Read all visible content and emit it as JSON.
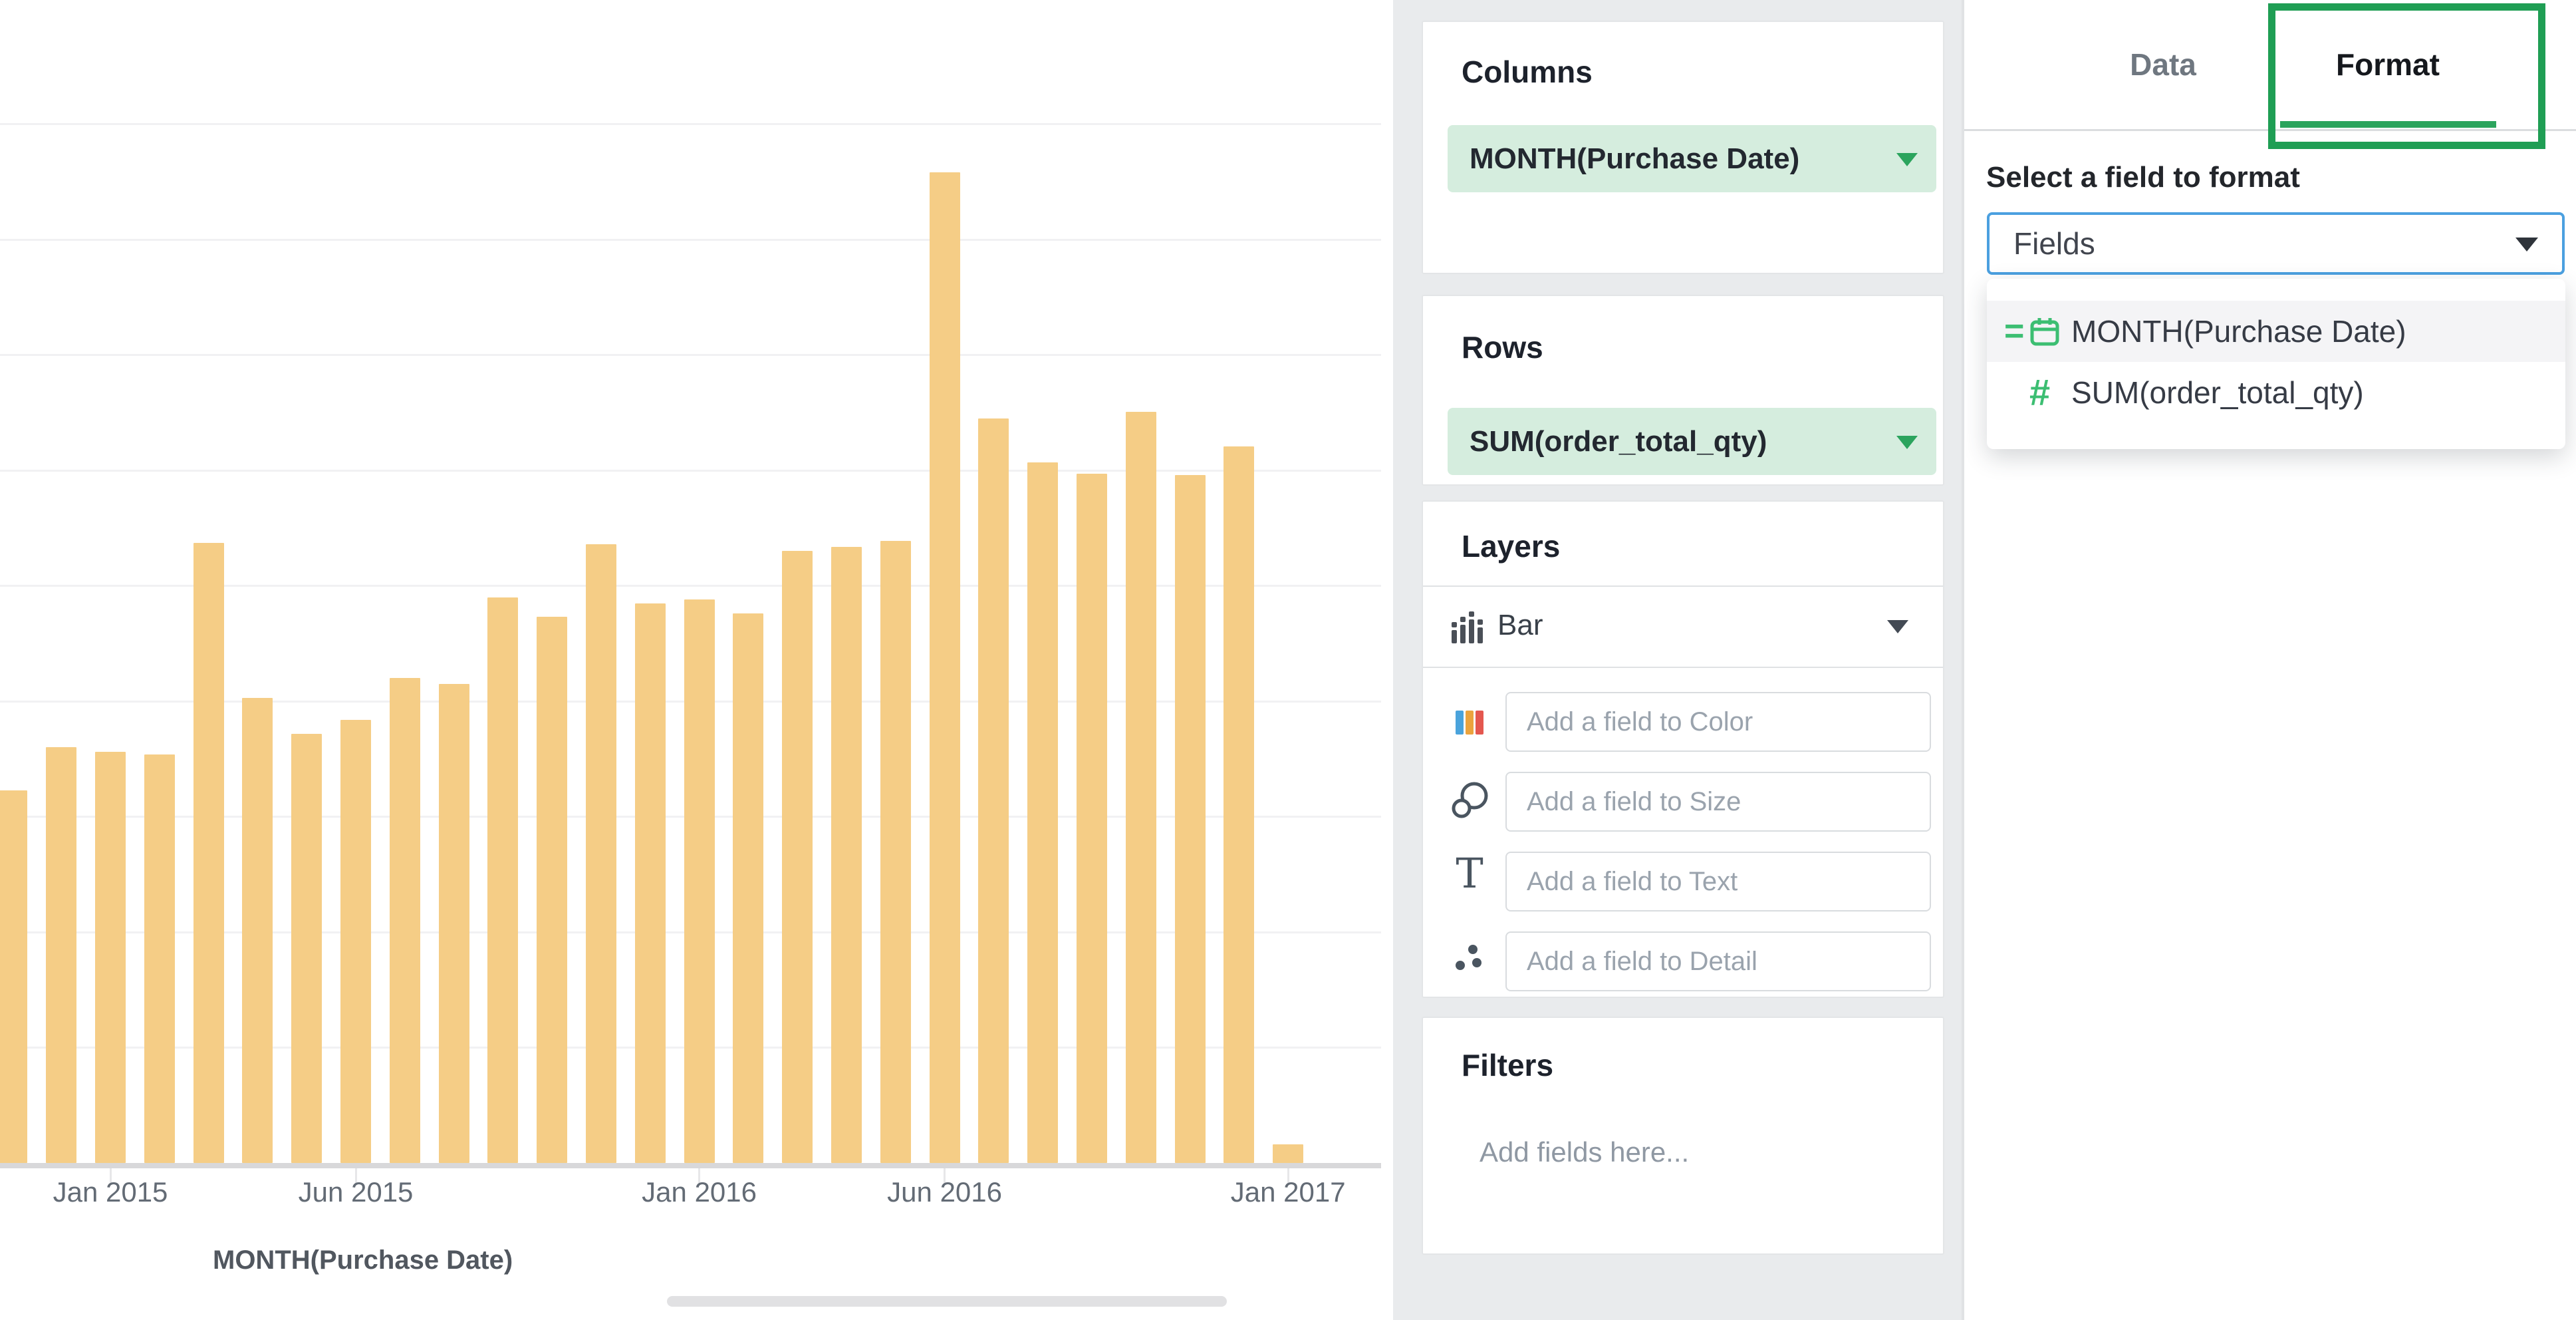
{
  "chart_data": {
    "type": "bar",
    "title": "",
    "xlabel": "MONTH(Purchase Date)",
    "ylabel": "SUM(order_total_qty)",
    "x": [
      "2014-11",
      "2014-12",
      "2015-01",
      "2015-02",
      "2015-03",
      "2015-04",
      "2015-05",
      "2015-06",
      "2015-07",
      "2015-08",
      "2015-09",
      "2015-10",
      "2015-11",
      "2015-12",
      "2016-01",
      "2016-02",
      "2016-03",
      "2016-04",
      "2016-05",
      "2016-06",
      "2016-07",
      "2016-08",
      "2016-09",
      "2016-10",
      "2016-11",
      "2016-12",
      "2017-01"
    ],
    "values": [
      3.23,
      3.6,
      3.56,
      3.54,
      5.37,
      4.03,
      3.72,
      3.84,
      4.2,
      4.15,
      4.9,
      4.73,
      5.36,
      4.85,
      4.88,
      4.76,
      5.3,
      5.34,
      5.39,
      8.58,
      6.45,
      6.07,
      5.97,
      6.51,
      5.96,
      6.21,
      0.16
    ],
    "value_units": "relative gridline units (y-axis labels cropped out of view)",
    "tick_labels": [
      {
        "label": "Jan 2015",
        "month_index": 2
      },
      {
        "label": "Jun 2015",
        "month_index": 7
      },
      {
        "label": "Jan 2016",
        "month_index": 14
      },
      {
        "label": "Jun 2016",
        "month_index": 19
      },
      {
        "label": "Jan 2017",
        "month_index": 26
      }
    ],
    "grid": true,
    "legend": false,
    "bar_color": "#F5CD86"
  },
  "editor": {
    "columns": {
      "title": "Columns",
      "pill": "MONTH(Purchase Date)"
    },
    "rows": {
      "title": "Rows",
      "pill": "SUM(order_total_qty)"
    },
    "layers": {
      "title": "Layers",
      "chart_type": "Bar",
      "fields": [
        {
          "icon": "color-bars-icon",
          "placeholder": "Add a field to Color"
        },
        {
          "icon": "size-circles-icon",
          "placeholder": "Add a field to Size"
        },
        {
          "icon": "text-icon",
          "placeholder": "Add a field to Text"
        },
        {
          "icon": "detail-dots-icon",
          "placeholder": "Add a field to Detail"
        }
      ]
    },
    "filters": {
      "title": "Filters",
      "placeholder": "Add fields here..."
    }
  },
  "inspector": {
    "tabs": [
      {
        "label": "Data",
        "active": false
      },
      {
        "label": "Format",
        "active": true
      }
    ],
    "field_select_label": "Select a field to format",
    "field_select_value": "Fields",
    "menu_items": [
      {
        "prefix_glyph": "=",
        "icon": "calendar-icon",
        "label": "MONTH(Purchase Date)",
        "highlighted": true
      },
      {
        "prefix_glyph": "#",
        "icon": "hash-icon",
        "label": "SUM(order_total_qty)",
        "highlighted": false
      }
    ]
  },
  "colors": {
    "bar": "#F5CD86",
    "accent_green": "#2BA45D",
    "annotation_green": "#1F9E54",
    "icon_green": "#3CBE72",
    "pill_bg": "#D5EDDE",
    "select_border_blue": "#4BA0E0",
    "panel_bg": "#E9EBED"
  }
}
